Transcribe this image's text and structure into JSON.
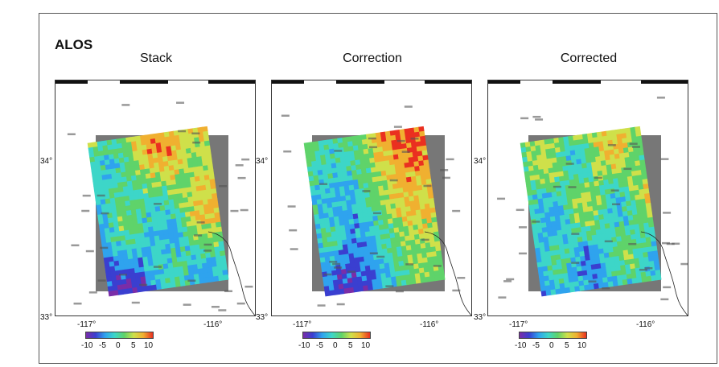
{
  "figure": {
    "title": "ALOS",
    "colormap": [
      "#7a2da8",
      "#3a3fd0",
      "#2fa3ee",
      "#3dd6c8",
      "#5fd36a",
      "#cfe04a",
      "#f0b030",
      "#ea3020"
    ],
    "panels": [
      {
        "title": "Stack"
      },
      {
        "title": "Correction"
      },
      {
        "title": "Corrected"
      }
    ],
    "axis_labels": {
      "y_top": "34°",
      "y_bottom": "33°",
      "x_left": "-117°",
      "x_right": "-116°"
    },
    "colorbar_ticks": [
      "-10",
      "-5",
      "0",
      "5",
      "10"
    ]
  }
}
